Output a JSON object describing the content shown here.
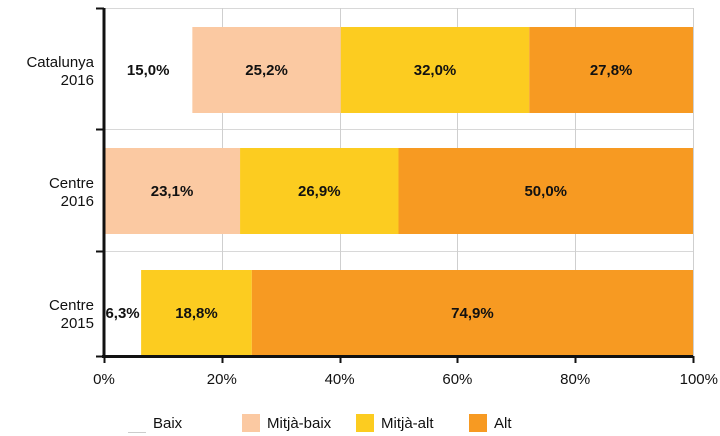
{
  "chart_data": {
    "type": "bar",
    "orientation": "horizontal",
    "stacked": "percent",
    "categories": [
      "Catalunya 2016",
      "Centre 2016",
      "Centre 2015"
    ],
    "category_lines": [
      [
        "Catalunya",
        "2016"
      ],
      [
        "Centre",
        "2016"
      ],
      [
        "Centre",
        "2015"
      ]
    ],
    "series": [
      {
        "name": "Baix",
        "color": "#ffffff",
        "values": [
          15.0,
          0.0,
          6.3
        ],
        "labels": [
          "15,0%",
          "",
          "6,3%"
        ]
      },
      {
        "name": "Mitjà-baix",
        "color": "#fbc9a2",
        "values": [
          25.2,
          23.1,
          0.0
        ],
        "labels": [
          "25,2%",
          "23,1%",
          ""
        ]
      },
      {
        "name": "Mitjà-alt",
        "color": "#fccc20",
        "values": [
          32.0,
          26.9,
          18.8
        ],
        "labels": [
          "32,0%",
          "26,9%",
          "18,8%"
        ]
      },
      {
        "name": "Alt",
        "color": "#f79a22",
        "values": [
          27.8,
          50.0,
          74.9
        ],
        "labels": [
          "27,8%",
          "50,0%",
          "74,9%"
        ]
      }
    ],
    "xlim": [
      0,
      100
    ],
    "xticks": [
      0,
      20,
      40,
      60,
      80,
      100
    ],
    "xtick_labels": [
      "0%",
      "20%",
      "40%",
      "60%",
      "80%",
      "100%"
    ],
    "grid": true,
    "legend": "bottom"
  }
}
